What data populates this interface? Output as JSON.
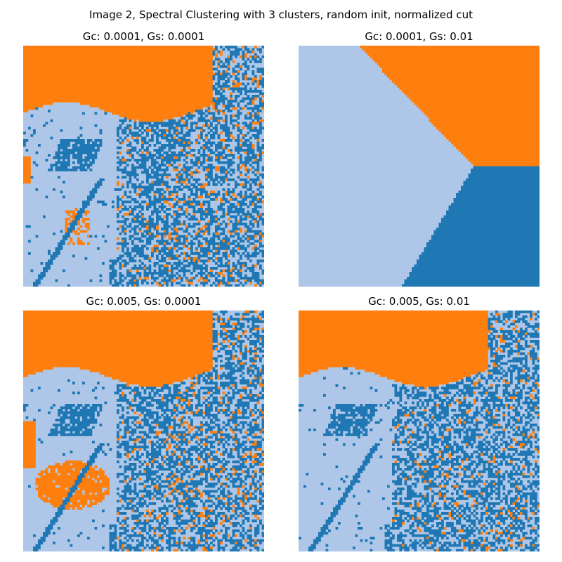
{
  "suptitle": "Image 2, Spectral Clustering with 3 clusters, random init, normalized cut",
  "colors": {
    "cluster_dark_blue": "#1f77b4",
    "cluster_orange": "#ff7f0e",
    "cluster_light_blue": "#aec7e8"
  },
  "chart_data": [
    {
      "type": "heatmap",
      "title": "Gc: 0.0001, Gs: 0.0001",
      "description_values": {
        "clusters": 3,
        "gc": 0.0001,
        "gs": 0.0001
      },
      "axes": "off",
      "pattern": "noisy"
    },
    {
      "type": "heatmap",
      "title": "Gc: 0.0001, Gs: 0.01",
      "description_values": {
        "clusters": 3,
        "gc": 0.0001,
        "gs": 0.01
      },
      "axes": "off",
      "pattern": "spatial"
    },
    {
      "type": "heatmap",
      "title": "Gc: 0.005, Gs: 0.0001",
      "description_values": {
        "clusters": 3,
        "gc": 0.005,
        "gs": 0.0001
      },
      "axes": "off",
      "pattern": "noisy"
    },
    {
      "type": "heatmap",
      "title": "Gc: 0.005, Gs: 0.01",
      "description_values": {
        "clusters": 3,
        "gc": 0.005,
        "gs": 0.01
      },
      "axes": "off",
      "pattern": "noisy"
    }
  ]
}
